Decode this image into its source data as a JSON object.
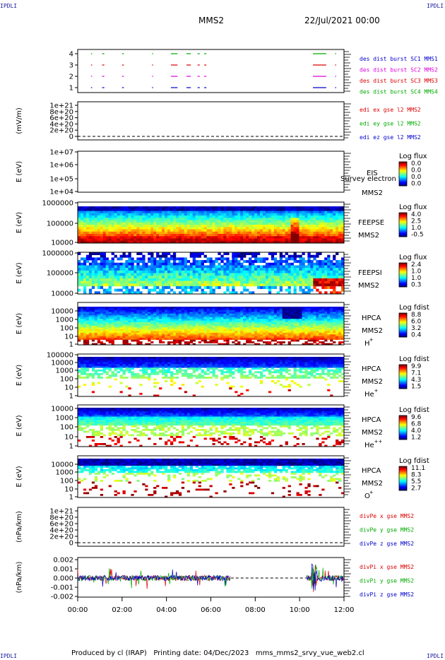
{
  "corners": {
    "label": "IPDLI"
  },
  "header": {
    "satellite": "MMS2",
    "date": "22/Jul/2021 00:00"
  },
  "footer": {
    "text": "Produced by cl (IRAP)   Printing date: 04/Dec/2023   mms_mms2_srvy_vue_web2.cl"
  },
  "time_axis": {
    "ticks": [
      "00:00",
      "02:00",
      "04:00",
      "06:00",
      "08:00",
      "10:00",
      "12:00"
    ]
  },
  "chart_data": [
    {
      "type": "timeline",
      "panel": "burst",
      "ytick_labels": [
        "4",
        "3",
        "2",
        "1"
      ],
      "legend": [
        {
          "text": "des dist burst SC1 MMS1",
          "color": "#0000cc"
        },
        {
          "text": "des dist burst SC2 MMS2",
          "color": "#dd00dd"
        },
        {
          "text": "des dist burst SC3 MMS3",
          "color": "#dd0000"
        },
        {
          "text": "des dist burst SC4 MMS4",
          "color": "#00aa00"
        }
      ],
      "intervals_hours": [
        [
          0.6,
          0.65
        ],
        [
          1.1,
          1.2
        ],
        [
          2.0,
          2.08
        ],
        [
          3.35,
          3.38
        ],
        [
          4.2,
          4.5
        ],
        [
          4.9,
          5.1
        ],
        [
          5.4,
          5.5
        ],
        [
          5.7,
          5.8
        ],
        [
          10.6,
          11.2
        ],
        [
          11.6,
          11.65
        ]
      ]
    },
    {
      "type": "line",
      "panel": "edi",
      "ylabel": "(mV/m)",
      "ytick_labels": [
        "1e+21",
        "8e+20",
        "6e+20",
        "4e+20",
        "2e+20",
        "0"
      ],
      "legend": [
        {
          "text": "edi ex gse l2 MMS2",
          "color": "#dd0000"
        },
        {
          "text": "edi ey gse l2 MMS2",
          "color": "#00aa00"
        },
        {
          "text": "edi ez gse l2 MMS2",
          "color": "#0000cc"
        }
      ]
    },
    {
      "type": "heatmap",
      "panel": "eis",
      "ylabel": "E (eV)",
      "ytick_labels": [
        "1e+07",
        "1e+06",
        "1e+05",
        "1e+04"
      ],
      "instrument": [
        "EIS",
        "MMS2"
      ],
      "overlay_text": "Survey electron to",
      "colorbar": {
        "title": "Log flux",
        "ticks": [
          "0.0",
          "0.0",
          "0.0",
          "0.0"
        ]
      }
    },
    {
      "type": "heatmap",
      "panel": "feepse",
      "ylabel": "E (eV)",
      "ytick_labels": [
        "1000000",
        "100000",
        "10000"
      ],
      "instrument": [
        "FEEPSE",
        "MMS2"
      ],
      "colorbar": {
        "title": "Log flux",
        "ticks": [
          "4.0",
          "2.5",
          "1.0",
          "-0.5"
        ]
      }
    },
    {
      "type": "heatmap",
      "panel": "feepsi",
      "ylabel": "E (eV)",
      "ytick_labels": [
        "1000000",
        "100000",
        "10000"
      ],
      "instrument": [
        "FEEPSI",
        "MMS2"
      ],
      "colorbar": {
        "title": "Log flux",
        "ticks": [
          "2.4",
          "1.0",
          "1.0",
          "0.3"
        ]
      }
    },
    {
      "type": "heatmap",
      "panel": "hpca-h",
      "ylabel": "E (eV)",
      "ytick_labels": [
        "10000",
        "1000",
        "100",
        "10",
        "1"
      ],
      "instrument": [
        "HPCA",
        "MMS2"
      ],
      "species": "H",
      "charge": "+",
      "colorbar": {
        "title": "Log fdist",
        "ticks": [
          "8.8",
          "6.0",
          "3.2",
          "0.4"
        ]
      }
    },
    {
      "type": "heatmap",
      "panel": "hpca-he",
      "ylabel": "E (eV)",
      "ytick_labels": [
        "100000",
        "10000",
        "1000",
        "100",
        "10",
        "1"
      ],
      "instrument": [
        "HPCA",
        "MMS2"
      ],
      "species": "He",
      "charge": "+",
      "colorbar": {
        "title": "Log fdist",
        "ticks": [
          "9.9",
          "7.1",
          "4.3",
          "1.5"
        ]
      }
    },
    {
      "type": "heatmap",
      "panel": "hpca-hepp",
      "ylabel": "E (eV)",
      "ytick_labels": [
        "10000",
        "1000",
        "100",
        "10",
        "1"
      ],
      "instrument": [
        "HPCA",
        "MMS2"
      ],
      "species": "He",
      "charge": "++",
      "colorbar": {
        "title": "Log fdist",
        "ticks": [
          "9.6",
          "6.8",
          "4.0",
          "1.2"
        ]
      }
    },
    {
      "type": "heatmap",
      "panel": "hpca-o",
      "ylabel": "E (eV)",
      "ytick_labels": [
        "10000",
        "1000",
        "100",
        "10",
        "1"
      ],
      "instrument": [
        "HPCA",
        "MMS2"
      ],
      "species": "O",
      "charge": "+",
      "colorbar": {
        "title": "Log fdist",
        "ticks": [
          "11.1",
          "8.3",
          "5.5",
          "2.7"
        ]
      }
    },
    {
      "type": "line",
      "panel": "divpe",
      "ylabel": "(nPa/km)",
      "ytick_labels": [
        "1e+21",
        "8e+20",
        "6e+20",
        "4e+20",
        "2e+20",
        "0"
      ],
      "legend": [
        {
          "text": "divPe x gse MMS2",
          "color": "#dd0000"
        },
        {
          "text": "divPe y gse MMS2",
          "color": "#00aa00"
        },
        {
          "text": "divPe z gse MMS2",
          "color": "#0000cc"
        }
      ]
    },
    {
      "type": "line",
      "panel": "divpi",
      "ylabel": "(nPa/km)",
      "ytick_labels": [
        "0.002",
        "0.001",
        "0.000",
        "-0.001",
        "-0.002"
      ],
      "ylim": [
        -0.0025,
        0.0022
      ],
      "data_gap_hours": [
        6.9,
        10.3
      ],
      "legend": [
        {
          "text": "divPi x gse MMS2",
          "color": "#dd0000"
        },
        {
          "text": "divPi y gse MMS2",
          "color": "#00aa00"
        },
        {
          "text": "divPi z gse MMS2",
          "color": "#0000cc"
        }
      ]
    }
  ]
}
